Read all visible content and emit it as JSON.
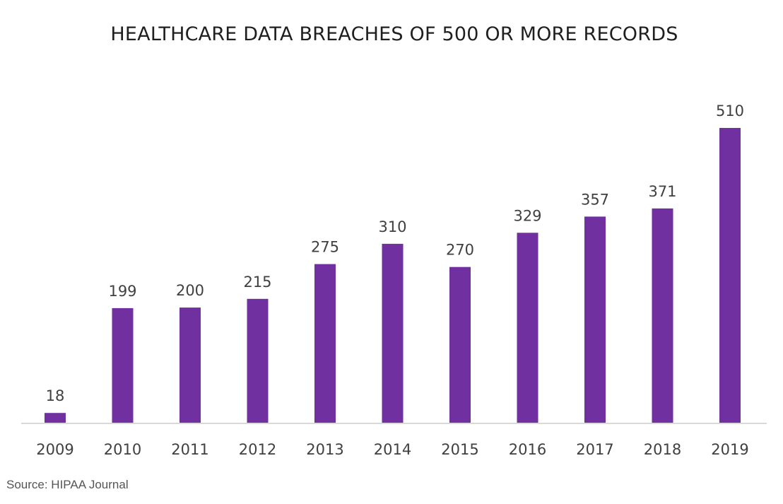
{
  "chart_data": {
    "type": "bar",
    "title": "HEALTHCARE DATA BREACHES OF 500 OR MORE RECORDS",
    "xlabel": "",
    "ylabel": "",
    "categories": [
      "2009",
      "2010",
      "2011",
      "2012",
      "2013",
      "2014",
      "2015",
      "2016",
      "2017",
      "2018",
      "2019"
    ],
    "values": [
      18,
      199,
      200,
      215,
      275,
      310,
      270,
      329,
      357,
      371,
      510
    ],
    "data_labels": [
      "18",
      "199",
      "200",
      "215",
      "275",
      "310",
      "270",
      "329",
      "357",
      "371",
      "510"
    ],
    "ylim": [
      0,
      510
    ],
    "grid": false,
    "legend": "none",
    "bar_color": "#7030a0",
    "axis_color": "#d9d9d9"
  },
  "source": "Source: HIPAA Journal"
}
